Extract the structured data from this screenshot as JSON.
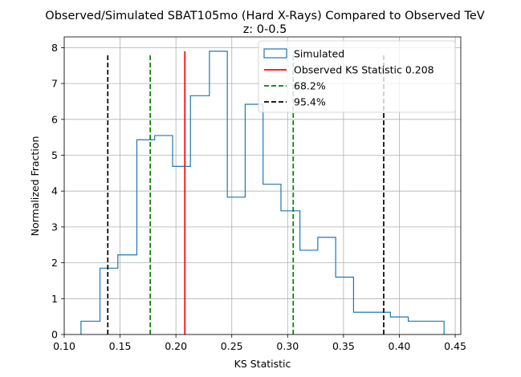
{
  "chart_data": {
    "type": "histogram",
    "title": "Observed/Simulated SBAT105mo (Hard X-Rays) Compared to Observed TeV",
    "subtitle": "z: 0-0.5",
    "xlabel": "KS Statistic",
    "ylabel": "Normalized Fraction",
    "xlim": [
      0.1,
      0.455
    ],
    "ylim": [
      0,
      8.3
    ],
    "xticks": [
      "0.10",
      "0.15",
      "0.20",
      "0.25",
      "0.30",
      "0.35",
      "0.40",
      "0.45"
    ],
    "yticks": [
      "0",
      "1",
      "2",
      "3",
      "4",
      "5",
      "6",
      "7",
      "8"
    ],
    "grid": true,
    "legend_position": "top-right",
    "histogram": {
      "name": "Simulated",
      "color": "#1f77b4",
      "bin_edges": [
        0.115,
        0.132,
        0.148,
        0.165,
        0.181,
        0.197,
        0.213,
        0.23,
        0.246,
        0.262,
        0.278,
        0.294,
        0.311,
        0.327,
        0.343,
        0.359,
        0.375,
        0.392,
        0.408,
        0.424,
        0.44
      ],
      "values": [
        0.37,
        1.85,
        2.22,
        5.43,
        5.55,
        4.69,
        6.66,
        7.9,
        3.83,
        6.42,
        4.19,
        3.45,
        2.35,
        2.71,
        1.6,
        0.62,
        0.62,
        0.49,
        0.37,
        0.37
      ]
    },
    "lines": [
      {
        "name": "Observed KS Statistic 0.208",
        "x": 0.208,
        "ymax": 7.9,
        "color": "#ff0000",
        "style": "solid"
      },
      {
        "name": "68.2%",
        "x": 0.177,
        "ymax": 7.85,
        "color": "#008000",
        "style": "dashed"
      },
      {
        "name": "68.2%",
        "x": 0.305,
        "ymax": 7.85,
        "color": "#008000",
        "style": "dashed"
      },
      {
        "name": "95.4%",
        "x": 0.139,
        "ymax": 7.85,
        "color": "#000000",
        "style": "dashed"
      },
      {
        "name": "95.4%",
        "x": 0.386,
        "ymax": 7.85,
        "color": "#000000",
        "style": "dashed"
      }
    ],
    "legend": [
      {
        "label": "Simulated",
        "kind": "patch",
        "color": "#1f77b4"
      },
      {
        "label": "Observed KS Statistic 0.208",
        "kind": "solid",
        "color": "#ff0000"
      },
      {
        "label": "68.2%",
        "kind": "dashed",
        "color": "#008000"
      },
      {
        "label": "95.4%",
        "kind": "dashed",
        "color": "#000000"
      }
    ]
  }
}
